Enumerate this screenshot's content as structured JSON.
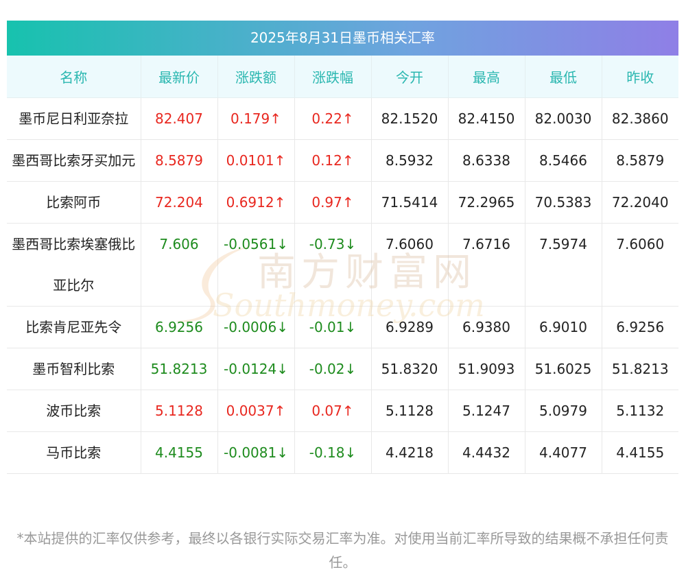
{
  "title": "2025年8月31日墨币相关汇率",
  "headers": [
    "名称",
    "最新价",
    "涨跌额",
    "涨跌幅",
    "今开",
    "最高",
    "最低",
    "昨收"
  ],
  "rows": [
    {
      "name": "墨币尼日利亚奈拉",
      "latest": "82.407",
      "change": "0.179↑",
      "pct": "0.22↑",
      "open": "82.1520",
      "high": "82.4150",
      "low": "82.0030",
      "prev": "82.3860",
      "dir": "up"
    },
    {
      "name": "墨西哥比索牙买加元",
      "latest": "8.5879",
      "change": "0.0101↑",
      "pct": "0.12↑",
      "open": "8.5932",
      "high": "8.6338",
      "low": "8.5466",
      "prev": "8.5879",
      "dir": "up"
    },
    {
      "name": "比索阿币",
      "latest": "72.204",
      "change": "0.6912↑",
      "pct": "0.97↑",
      "open": "71.5414",
      "high": "72.2965",
      "low": "70.5383",
      "prev": "72.2040",
      "dir": "up"
    },
    {
      "name": "墨西哥比索埃塞俄比亚比尔",
      "latest": "7.606",
      "change": "-0.0561↓",
      "pct": "-0.73↓",
      "open": "7.6060",
      "high": "7.6716",
      "low": "7.5974",
      "prev": "7.6060",
      "dir": "down"
    },
    {
      "name": "比索肯尼亚先令",
      "latest": "6.9256",
      "change": "-0.0006↓",
      "pct": "-0.01↓",
      "open": "6.9289",
      "high": "6.9380",
      "low": "6.9010",
      "prev": "6.9256",
      "dir": "down"
    },
    {
      "name": "墨币智利比索",
      "latest": "51.8213",
      "change": "-0.0124↓",
      "pct": "-0.02↓",
      "open": "51.8320",
      "high": "51.9093",
      "low": "51.6025",
      "prev": "51.8213",
      "dir": "down"
    },
    {
      "name": "波币比索",
      "latest": "5.1128",
      "change": "0.0037↑",
      "pct": "0.07↑",
      "open": "5.1128",
      "high": "5.1247",
      "low": "5.0979",
      "prev": "5.1132",
      "dir": "up"
    },
    {
      "name": "马币比索",
      "latest": "4.4155",
      "change": "-0.0081↓",
      "pct": "-0.18↓",
      "open": "4.4218",
      "high": "4.4432",
      "low": "4.4077",
      "prev": "4.4155",
      "dir": "down"
    }
  ],
  "watermark": {
    "cn": "南方财富网",
    "en": "Southmoney.com"
  },
  "note": "*本站提供的汇率仅供参考，最终以各银行实际交易汇率为准。对使用当前汇率所导致的结果概不承担任何责任。",
  "colors": {
    "up": "#e8271f",
    "down": "#1d8b1d",
    "header_text": "#2ab7b0",
    "title_start": "#17c2ae",
    "title_end": "#8f7fe6"
  }
}
